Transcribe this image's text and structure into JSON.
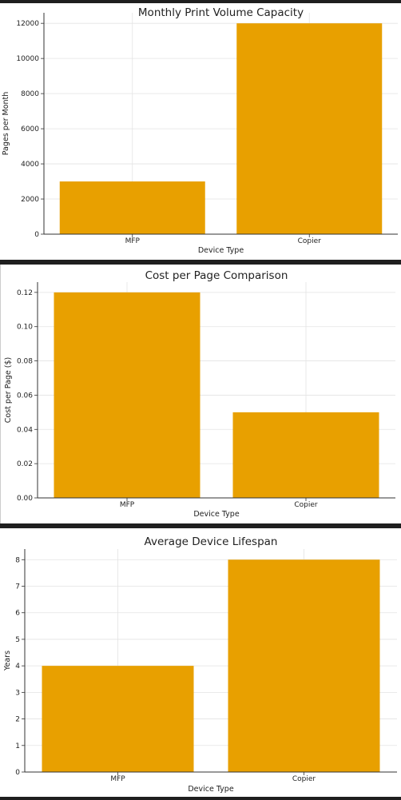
{
  "colors": {
    "bar": "#E8A000",
    "grid": "#e3e3e3",
    "axis": "#333333"
  },
  "chart_data": [
    {
      "type": "bar",
      "title": "Monthly Print Volume Capacity",
      "xlabel": "Device Type",
      "ylabel": "Pages per Month",
      "categories": [
        "MFP",
        "Copier"
      ],
      "values": [
        3000,
        12000
      ],
      "ylim": [
        0,
        12600
      ],
      "yticks": [
        0,
        2000,
        4000,
        6000,
        8000,
        10000,
        12000
      ],
      "ytick_labels": [
        "0",
        "2000",
        "4000",
        "6000",
        "8000",
        "10000",
        "12000"
      ],
      "grid": true
    },
    {
      "type": "bar",
      "title": "Cost per Page Comparison",
      "xlabel": "Device Type",
      "ylabel": "Cost per Page ($)",
      "categories": [
        "MFP",
        "Copier"
      ],
      "values": [
        0.12,
        0.05
      ],
      "ylim": [
        0,
        0.126
      ],
      "yticks": [
        0,
        0.02,
        0.04,
        0.06,
        0.08,
        0.1,
        0.12
      ],
      "ytick_labels": [
        "0.00",
        "0.02",
        "0.04",
        "0.06",
        "0.08",
        "0.10",
        "0.12"
      ],
      "grid": true
    },
    {
      "type": "bar",
      "title": "Average Device Lifespan",
      "xlabel": "Device Type",
      "ylabel": "Years",
      "categories": [
        "MFP",
        "Copier"
      ],
      "values": [
        4,
        8
      ],
      "ylim": [
        0,
        8.4
      ],
      "yticks": [
        0,
        1,
        2,
        3,
        4,
        5,
        6,
        7,
        8
      ],
      "ytick_labels": [
        "0",
        "1",
        "2",
        "3",
        "4",
        "5",
        "6",
        "7",
        "8"
      ],
      "grid": true
    }
  ]
}
